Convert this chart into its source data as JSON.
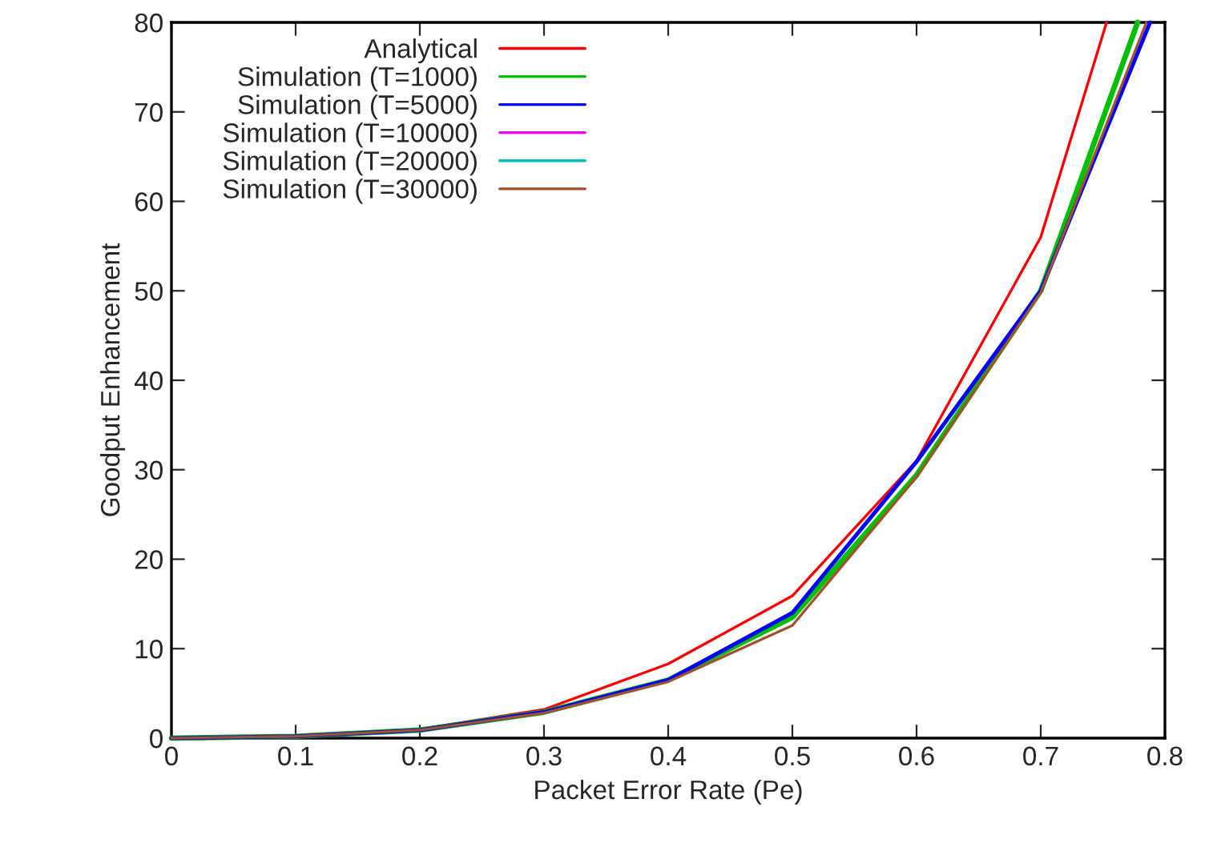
{
  "chart_data": {
    "type": "line",
    "xlabel": "Packet Error Rate (Pe)",
    "ylabel": "Goodput Enhancement",
    "xlim": [
      0,
      0.8
    ],
    "ylim": [
      0,
      80
    ],
    "xticks": [
      0,
      0.1,
      0.2,
      0.3,
      0.4,
      0.5,
      0.6,
      0.7,
      0.8
    ],
    "yticks": [
      0,
      10,
      20,
      30,
      40,
      50,
      60,
      70,
      80
    ],
    "grid": false,
    "legend": "top left",
    "marker": "none",
    "line_style": "solid",
    "series": [
      {
        "name": "Analytical",
        "color": "#ff0000",
        "x": [
          0,
          0.1,
          0.2,
          0.3,
          0.4,
          0.5,
          0.6,
          0.7,
          0.753
        ],
        "values": [
          0,
          0.2,
          1.0,
          3.2,
          8.3,
          15.9,
          31,
          56,
          80
        ]
      },
      {
        "name": "Simulation (T=1000)",
        "color": "#00c000",
        "x": [
          0,
          0.1,
          0.2,
          0.3,
          0.4,
          0.5,
          0.6,
          0.7,
          0.778
        ],
        "values": [
          0,
          0.2,
          0.9,
          2.9,
          6.5,
          13.5,
          29.4,
          50,
          80
        ]
      },
      {
        "name": "Simulation (T=5000)",
        "color": "#0000ff",
        "x": [
          0,
          0.1,
          0.2,
          0.3,
          0.4,
          0.5,
          0.6,
          0.7,
          0.788
        ],
        "values": [
          0,
          0.2,
          0.9,
          2.9,
          6.5,
          14.0,
          30.9,
          50,
          80
        ]
      },
      {
        "name": "Simulation (T=10000)",
        "color": "#ff00ff"
      },
      {
        "name": "Simulation (T=20000)",
        "color": "#00c0c0"
      },
      {
        "name": "Simulation (T=30000)",
        "color": "#a0522d",
        "x": [
          0,
          0.1,
          0.2,
          0.3,
          0.4,
          0.5,
          0.6,
          0.7,
          0.785
        ],
        "values": [
          0,
          0.2,
          0.9,
          2.8,
          6.3,
          12.6,
          29.2,
          49.8,
          80
        ]
      }
    ]
  }
}
